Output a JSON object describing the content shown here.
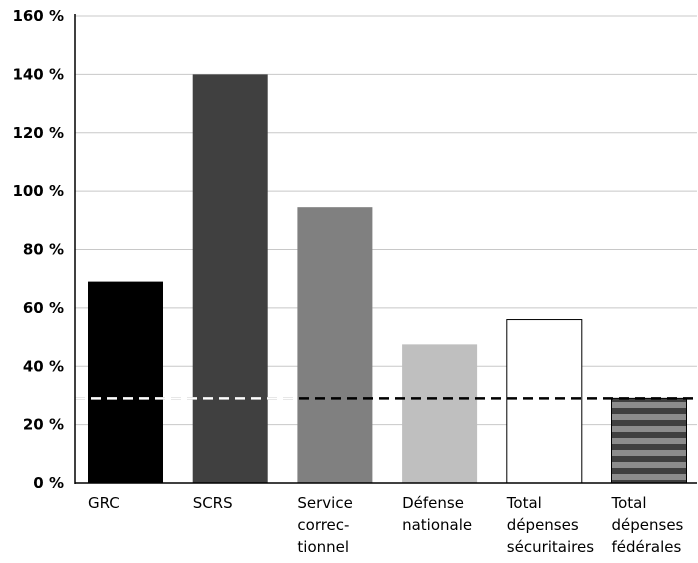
{
  "chart_data": {
    "type": "bar",
    "title": "",
    "xlabel": "",
    "ylabel": "",
    "ylim": [
      0,
      160
    ],
    "y_ticks": [
      0,
      20,
      40,
      60,
      80,
      100,
      120,
      140,
      160
    ],
    "y_tick_suffix": " %",
    "grid": "horizontal",
    "categories": [
      [
        "GRC"
      ],
      [
        "SCRS"
      ],
      [
        "Service",
        "correc-",
        "tionnel"
      ],
      [
        "Défense",
        "nationale"
      ],
      [
        "Total",
        "dépenses",
        "sécuritaires"
      ],
      [
        "Total",
        "dépenses",
        "fédérales"
      ]
    ],
    "values": [
      69,
      140,
      94.5,
      47.5,
      56,
      29
    ],
    "bar_fills": [
      "#000000",
      "#404040",
      "#808080",
      "#bfbfbf",
      "#ffffff",
      "striped"
    ],
    "stripe_colors": [
      "#3f3f3f",
      "#8c8c8c"
    ],
    "reference_line": {
      "value": 29,
      "style": "dashed"
    }
  }
}
